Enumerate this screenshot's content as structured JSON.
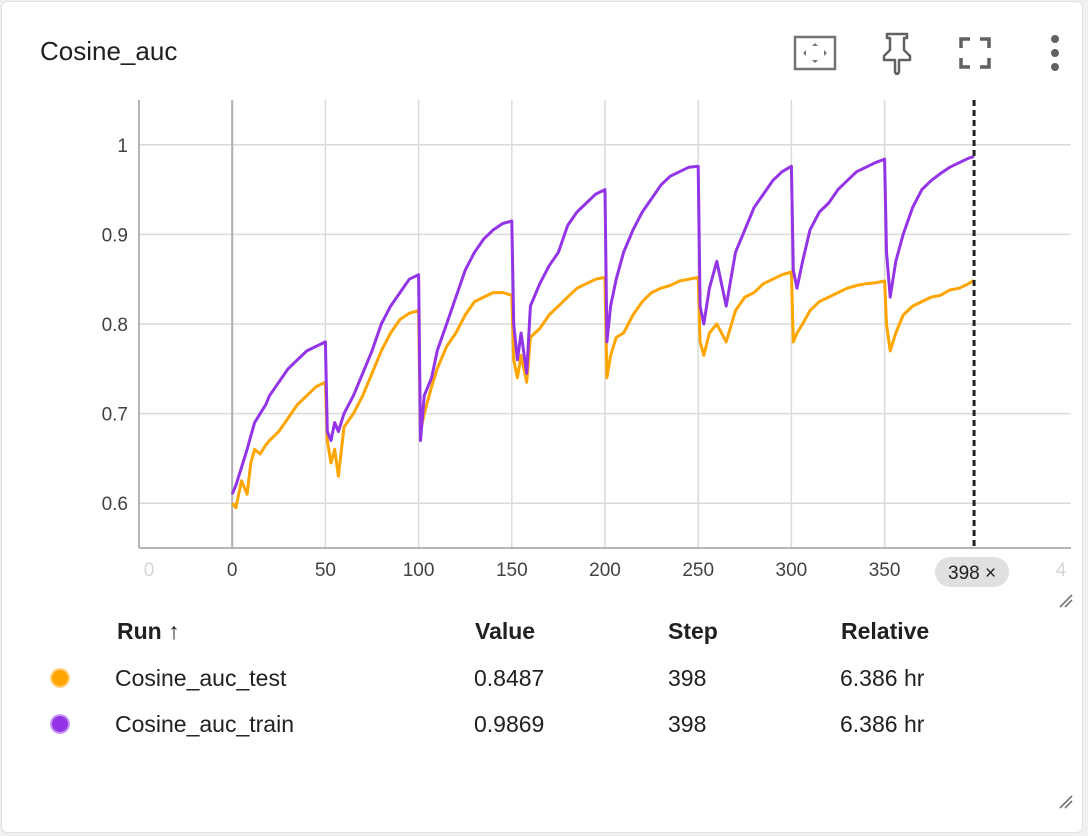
{
  "card": {
    "title": "Cosine_auc",
    "toolbar": [
      {
        "name": "fit-domain-icon"
      },
      {
        "name": "pin-icon"
      },
      {
        "name": "fullscreen-icon"
      },
      {
        "name": "more-vert-icon"
      }
    ]
  },
  "chart_data": {
    "type": "line",
    "title": "Cosine_auc",
    "xlabel": "",
    "ylabel": "",
    "xlim": [
      -50,
      450
    ],
    "ylim": [
      0.55,
      1.05
    ],
    "x_ticks": [
      "0",
      "0",
      "50",
      "100",
      "150",
      "200",
      "250",
      "300",
      "350",
      "4"
    ],
    "y_ticks": [
      "0.6",
      "0.7",
      "0.8",
      "0.9",
      "1"
    ],
    "grid": true,
    "cursor_step": 398,
    "cursor_label": "398 ×",
    "series": [
      {
        "name": "Cosine_auc_test",
        "color": "#FFA500",
        "x": [
          0,
          2,
          5,
          8,
          10,
          12,
          15,
          18,
          20,
          25,
          30,
          35,
          40,
          45,
          50,
          51,
          53,
          55,
          57,
          60,
          65,
          70,
          75,
          80,
          85,
          90,
          95,
          100,
          101,
          103,
          107,
          110,
          115,
          120,
          125,
          130,
          135,
          140,
          145,
          150,
          151,
          153,
          155,
          158,
          160,
          165,
          170,
          175,
          180,
          185,
          190,
          195,
          200,
          201,
          203,
          206,
          210,
          215,
          220,
          225,
          230,
          235,
          240,
          245,
          250,
          251,
          253,
          256,
          260,
          265,
          270,
          275,
          280,
          285,
          290,
          295,
          300,
          301,
          303,
          306,
          310,
          315,
          320,
          325,
          330,
          335,
          340,
          345,
          350,
          351,
          353,
          356,
          360,
          365,
          370,
          375,
          380,
          385,
          390,
          395,
          398
        ],
        "y": [
          0.6,
          0.595,
          0.625,
          0.61,
          0.645,
          0.66,
          0.655,
          0.665,
          0.67,
          0.68,
          0.695,
          0.71,
          0.72,
          0.73,
          0.735,
          0.67,
          0.645,
          0.66,
          0.63,
          0.685,
          0.7,
          0.72,
          0.745,
          0.77,
          0.79,
          0.805,
          0.812,
          0.815,
          0.68,
          0.7,
          0.73,
          0.75,
          0.775,
          0.79,
          0.81,
          0.825,
          0.83,
          0.835,
          0.835,
          0.832,
          0.76,
          0.74,
          0.765,
          0.735,
          0.785,
          0.795,
          0.81,
          0.82,
          0.83,
          0.84,
          0.845,
          0.85,
          0.852,
          0.74,
          0.765,
          0.785,
          0.79,
          0.81,
          0.825,
          0.835,
          0.84,
          0.843,
          0.848,
          0.85,
          0.852,
          0.78,
          0.765,
          0.79,
          0.8,
          0.78,
          0.815,
          0.83,
          0.835,
          0.845,
          0.85,
          0.855,
          0.858,
          0.78,
          0.79,
          0.8,
          0.815,
          0.825,
          0.83,
          0.835,
          0.84,
          0.843,
          0.845,
          0.846,
          0.848,
          0.8,
          0.77,
          0.79,
          0.81,
          0.82,
          0.825,
          0.83,
          0.832,
          0.838,
          0.84,
          0.845,
          0.8487
        ]
      },
      {
        "name": "Cosine_auc_train",
        "color": "#9334E6",
        "x": [
          0,
          2,
          5,
          8,
          10,
          12,
          15,
          18,
          20,
          25,
          30,
          35,
          40,
          45,
          50,
          51,
          53,
          55,
          57,
          60,
          65,
          70,
          75,
          80,
          85,
          90,
          95,
          100,
          101,
          103,
          107,
          110,
          115,
          120,
          125,
          130,
          135,
          140,
          145,
          150,
          151,
          153,
          155,
          158,
          160,
          165,
          170,
          175,
          180,
          185,
          190,
          195,
          200,
          201,
          203,
          206,
          210,
          215,
          220,
          225,
          230,
          235,
          240,
          245,
          250,
          251,
          253,
          256,
          260,
          265,
          270,
          275,
          280,
          285,
          290,
          295,
          300,
          301,
          303,
          306,
          310,
          315,
          320,
          325,
          330,
          335,
          340,
          345,
          350,
          351,
          353,
          356,
          360,
          365,
          370,
          375,
          380,
          385,
          390,
          395,
          398
        ],
        "y": [
          0.61,
          0.62,
          0.64,
          0.66,
          0.675,
          0.69,
          0.7,
          0.71,
          0.72,
          0.735,
          0.75,
          0.76,
          0.77,
          0.775,
          0.78,
          0.68,
          0.67,
          0.69,
          0.68,
          0.7,
          0.72,
          0.745,
          0.77,
          0.8,
          0.82,
          0.835,
          0.85,
          0.855,
          0.67,
          0.72,
          0.74,
          0.77,
          0.8,
          0.83,
          0.86,
          0.88,
          0.895,
          0.905,
          0.912,
          0.915,
          0.8,
          0.76,
          0.79,
          0.745,
          0.82,
          0.845,
          0.865,
          0.88,
          0.91,
          0.925,
          0.935,
          0.945,
          0.95,
          0.78,
          0.82,
          0.85,
          0.88,
          0.905,
          0.925,
          0.94,
          0.955,
          0.965,
          0.97,
          0.975,
          0.976,
          0.82,
          0.8,
          0.84,
          0.87,
          0.82,
          0.88,
          0.905,
          0.93,
          0.945,
          0.96,
          0.97,
          0.976,
          0.86,
          0.84,
          0.87,
          0.905,
          0.925,
          0.935,
          0.95,
          0.96,
          0.97,
          0.975,
          0.98,
          0.984,
          0.88,
          0.83,
          0.87,
          0.9,
          0.93,
          0.95,
          0.96,
          0.968,
          0.975,
          0.98,
          0.985,
          0.9869
        ]
      }
    ]
  },
  "table": {
    "headers": {
      "run": "Run ↑",
      "value": "Value",
      "step": "Step",
      "relative": "Relative"
    },
    "rows": [
      {
        "color": "#FFA500",
        "run": "Cosine_auc_test",
        "value": "0.8487",
        "step": "398",
        "relative": "6.386 hr"
      },
      {
        "color": "#9334E6",
        "run": "Cosine_auc_train",
        "value": "0.9869",
        "step": "398",
        "relative": "6.386 hr"
      }
    ]
  }
}
